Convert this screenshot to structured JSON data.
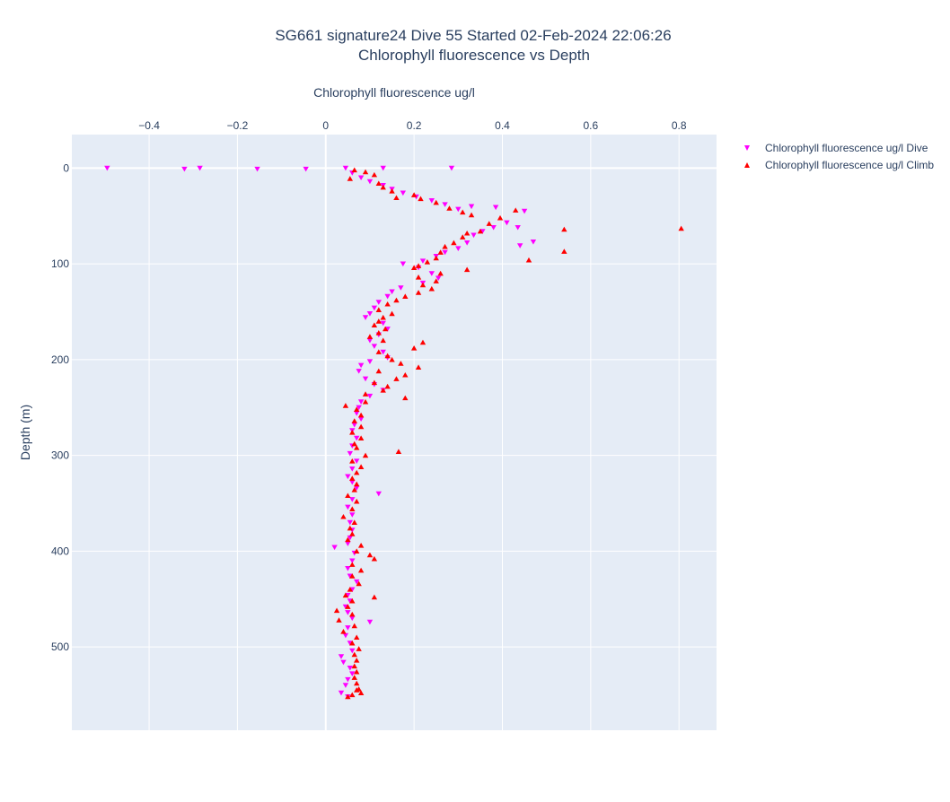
{
  "chart_data": {
    "type": "scatter",
    "title": "SG661 signature24 Dive 55 Started 02-Feb-2024 22:06:26",
    "subtitle": "Chlorophyll fluorescence vs Depth",
    "xlabel": "Chlorophyll fluorescence ug/l",
    "ylabel": "Depth (m)",
    "x_axis_position": "top",
    "y_reversed": true,
    "xlim": [
      -0.575,
      0.885
    ],
    "ylim": [
      -35,
      587
    ],
    "x_ticks": [
      -0.4,
      -0.2,
      0,
      0.2,
      0.4,
      0.6,
      0.8
    ],
    "x_tick_labels": [
      "−0.4",
      "−0.2",
      "0",
      "0.2",
      "0.4",
      "0.6",
      "0.8"
    ],
    "y_ticks": [
      0,
      100,
      200,
      300,
      400,
      500
    ],
    "y_tick_labels": [
      "0",
      "100",
      "200",
      "300",
      "400",
      "500"
    ],
    "grid": true,
    "legend_position": "top-right",
    "series": [
      {
        "name": "Chlorophyll fluorescence ug/l Dive",
        "color": "#ff00ff",
        "marker": "triangle-down",
        "points": [
          [
            -0.495,
            0
          ],
          [
            -0.32,
            1
          ],
          [
            -0.285,
            0
          ],
          [
            -0.155,
            1
          ],
          [
            -0.045,
            1
          ],
          [
            0.045,
            0
          ],
          [
            0.13,
            0
          ],
          [
            0.285,
            0
          ],
          [
            0.06,
            5
          ],
          [
            0.08,
            10
          ],
          [
            0.1,
            14
          ],
          [
            0.13,
            18
          ],
          [
            0.15,
            22
          ],
          [
            0.175,
            26
          ],
          [
            0.205,
            30
          ],
          [
            0.24,
            34
          ],
          [
            0.27,
            38
          ],
          [
            0.3,
            43
          ],
          [
            0.33,
            40
          ],
          [
            0.385,
            41
          ],
          [
            0.45,
            45
          ],
          [
            0.41,
            57
          ],
          [
            0.38,
            62
          ],
          [
            0.435,
            62
          ],
          [
            0.355,
            66
          ],
          [
            0.335,
            70
          ],
          [
            0.47,
            77
          ],
          [
            0.44,
            81
          ],
          [
            0.32,
            78
          ],
          [
            0.3,
            84
          ],
          [
            0.27,
            88
          ],
          [
            0.25,
            92
          ],
          [
            0.22,
            97
          ],
          [
            0.175,
            100
          ],
          [
            0.21,
            104
          ],
          [
            0.24,
            110
          ],
          [
            0.255,
            115
          ],
          [
            0.22,
            120
          ],
          [
            0.17,
            125
          ],
          [
            0.15,
            129
          ],
          [
            0.14,
            134
          ],
          [
            0.12,
            140
          ],
          [
            0.11,
            146
          ],
          [
            0.1,
            152
          ],
          [
            0.09,
            156
          ],
          [
            0.13,
            162
          ],
          [
            0.14,
            168
          ],
          [
            0.12,
            174
          ],
          [
            0.1,
            180
          ],
          [
            0.11,
            186
          ],
          [
            0.13,
            192
          ],
          [
            0.14,
            198
          ],
          [
            0.1,
            202
          ],
          [
            0.08,
            206
          ],
          [
            0.075,
            212
          ],
          [
            0.09,
            220
          ],
          [
            0.11,
            226
          ],
          [
            0.13,
            232
          ],
          [
            0.1,
            238
          ],
          [
            0.08,
            244
          ],
          [
            0.075,
            250
          ],
          [
            0.07,
            256
          ],
          [
            0.08,
            262
          ],
          [
            0.065,
            268
          ],
          [
            0.06,
            274
          ],
          [
            0.07,
            282
          ],
          [
            0.06,
            290
          ],
          [
            0.055,
            298
          ],
          [
            0.07,
            306
          ],
          [
            0.06,
            314
          ],
          [
            0.05,
            322
          ],
          [
            0.06,
            328
          ],
          [
            0.07,
            334
          ],
          [
            0.12,
            340
          ],
          [
            0.06,
            346
          ],
          [
            0.05,
            354
          ],
          [
            0.06,
            362
          ],
          [
            0.055,
            370
          ],
          [
            0.06,
            378
          ],
          [
            0.055,
            386
          ],
          [
            0.05,
            392
          ],
          [
            0.02,
            396
          ],
          [
            0.065,
            402
          ],
          [
            0.06,
            410
          ],
          [
            0.05,
            418
          ],
          [
            0.055,
            426
          ],
          [
            0.07,
            432
          ],
          [
            0.06,
            440
          ],
          [
            0.05,
            446
          ],
          [
            0.055,
            452
          ],
          [
            0.045,
            458
          ],
          [
            0.05,
            464
          ],
          [
            0.06,
            470
          ],
          [
            0.1,
            474
          ],
          [
            0.05,
            480
          ],
          [
            0.045,
            488
          ],
          [
            0.055,
            496
          ],
          [
            0.06,
            504
          ],
          [
            0.035,
            510
          ],
          [
            0.04,
            516
          ],
          [
            0.055,
            522
          ],
          [
            0.06,
            528
          ],
          [
            0.05,
            534
          ],
          [
            0.045,
            540
          ],
          [
            0.035,
            548
          ],
          [
            0.05,
            552
          ]
        ]
      },
      {
        "name": "Chlorophyll fluorescence ug/l Climb",
        "color": "#ff0000",
        "marker": "triangle-up",
        "points": [
          [
            0.065,
            2
          ],
          [
            0.09,
            4
          ],
          [
            0.11,
            7
          ],
          [
            0.055,
            11
          ],
          [
            0.12,
            16
          ],
          [
            0.13,
            20
          ],
          [
            0.15,
            24
          ],
          [
            0.2,
            28
          ],
          [
            0.215,
            32
          ],
          [
            0.16,
            31
          ],
          [
            0.25,
            36
          ],
          [
            0.28,
            42
          ],
          [
            0.31,
            46
          ],
          [
            0.33,
            49
          ],
          [
            0.395,
            52
          ],
          [
            0.43,
            44
          ],
          [
            0.37,
            58
          ],
          [
            0.54,
            64
          ],
          [
            0.805,
            63
          ],
          [
            0.35,
            66
          ],
          [
            0.32,
            68
          ],
          [
            0.31,
            72
          ],
          [
            0.29,
            78
          ],
          [
            0.27,
            82
          ],
          [
            0.26,
            88
          ],
          [
            0.54,
            87
          ],
          [
            0.46,
            96
          ],
          [
            0.25,
            94
          ],
          [
            0.23,
            98
          ],
          [
            0.21,
            102
          ],
          [
            0.2,
            104
          ],
          [
            0.32,
            106
          ],
          [
            0.26,
            110
          ],
          [
            0.21,
            114
          ],
          [
            0.25,
            118
          ],
          [
            0.22,
            122
          ],
          [
            0.24,
            126
          ],
          [
            0.21,
            130
          ],
          [
            0.18,
            134
          ],
          [
            0.16,
            138
          ],
          [
            0.14,
            142
          ],
          [
            0.12,
            148
          ],
          [
            0.15,
            152
          ],
          [
            0.13,
            156
          ],
          [
            0.12,
            160
          ],
          [
            0.11,
            164
          ],
          [
            0.135,
            168
          ],
          [
            0.12,
            172
          ],
          [
            0.1,
            176
          ],
          [
            0.13,
            180
          ],
          [
            0.22,
            182
          ],
          [
            0.2,
            188
          ],
          [
            0.12,
            192
          ],
          [
            0.14,
            196
          ],
          [
            0.15,
            200
          ],
          [
            0.17,
            204
          ],
          [
            0.21,
            208
          ],
          [
            0.12,
            212
          ],
          [
            0.18,
            216
          ],
          [
            0.16,
            220
          ],
          [
            0.11,
            224
          ],
          [
            0.14,
            228
          ],
          [
            0.13,
            232
          ],
          [
            0.09,
            236
          ],
          [
            0.18,
            240
          ],
          [
            0.09,
            244
          ],
          [
            0.045,
            248
          ],
          [
            0.07,
            252
          ],
          [
            0.08,
            258
          ],
          [
            0.065,
            264
          ],
          [
            0.08,
            270
          ],
          [
            0.06,
            276
          ],
          [
            0.08,
            282
          ],
          [
            0.065,
            288
          ],
          [
            0.07,
            292
          ],
          [
            0.165,
            296
          ],
          [
            0.09,
            300
          ],
          [
            0.06,
            306
          ],
          [
            0.08,
            312
          ],
          [
            0.07,
            318
          ],
          [
            0.06,
            324
          ],
          [
            0.07,
            330
          ],
          [
            0.065,
            336
          ],
          [
            0.05,
            342
          ],
          [
            0.07,
            348
          ],
          [
            0.06,
            356
          ],
          [
            0.04,
            364
          ],
          [
            0.065,
            370
          ],
          [
            0.055,
            376
          ],
          [
            0.06,
            382
          ],
          [
            0.05,
            388
          ],
          [
            0.08,
            394
          ],
          [
            0.07,
            400
          ],
          [
            0.1,
            404
          ],
          [
            0.11,
            408
          ],
          [
            0.06,
            414
          ],
          [
            0.08,
            420
          ],
          [
            0.06,
            426
          ],
          [
            0.075,
            434
          ],
          [
            0.055,
            440
          ],
          [
            0.045,
            446
          ],
          [
            0.11,
            448
          ],
          [
            0.06,
            452
          ],
          [
            0.05,
            458
          ],
          [
            0.025,
            462
          ],
          [
            0.06,
            466
          ],
          [
            0.03,
            472
          ],
          [
            0.065,
            478
          ],
          [
            0.04,
            484
          ],
          [
            0.07,
            490
          ],
          [
            0.06,
            496
          ],
          [
            0.075,
            502
          ],
          [
            0.065,
            508
          ],
          [
            0.07,
            514
          ],
          [
            0.065,
            520
          ],
          [
            0.07,
            526
          ],
          [
            0.065,
            532
          ],
          [
            0.07,
            538
          ],
          [
            0.075,
            544
          ],
          [
            0.06,
            550
          ],
          [
            0.08,
            548
          ],
          [
            0.05,
            552
          ],
          [
            0.07,
            545
          ]
        ]
      }
    ]
  }
}
